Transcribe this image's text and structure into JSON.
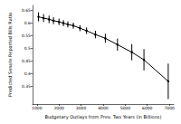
{
  "chart_data": {
    "type": "line",
    "x_label": "Budgetary Outlays from Prev. Two Years (in Billions)",
    "y_label": "Predicted Senate Reported Bills Ratio",
    "x": [
      1070,
      1300,
      1550,
      1750,
      2000,
      2200,
      2400,
      2650,
      2950,
      3250,
      3650,
      4100,
      4650,
      5300,
      5850,
      6950
    ],
    "values": [
      0.625,
      0.62,
      0.615,
      0.61,
      0.605,
      0.6,
      0.595,
      0.59,
      0.58,
      0.57,
      0.555,
      0.54,
      0.515,
      0.485,
      0.455,
      0.37
    ],
    "errors": [
      0.018,
      0.016,
      0.015,
      0.014,
      0.013,
      0.012,
      0.012,
      0.012,
      0.012,
      0.013,
      0.015,
      0.018,
      0.024,
      0.032,
      0.042,
      0.07
    ],
    "color": "#000000",
    "marker": "circle",
    "xlim": [
      800,
      7200
    ],
    "xticks": [
      1000,
      2000,
      3000,
      4000,
      5000,
      6000,
      7000
    ],
    "ylim": [
      0.28,
      0.67
    ],
    "yticks": [
      0.35,
      0.4,
      0.45,
      0.5,
      0.55,
      0.6,
      0.65
    ],
    "grid": false
  }
}
